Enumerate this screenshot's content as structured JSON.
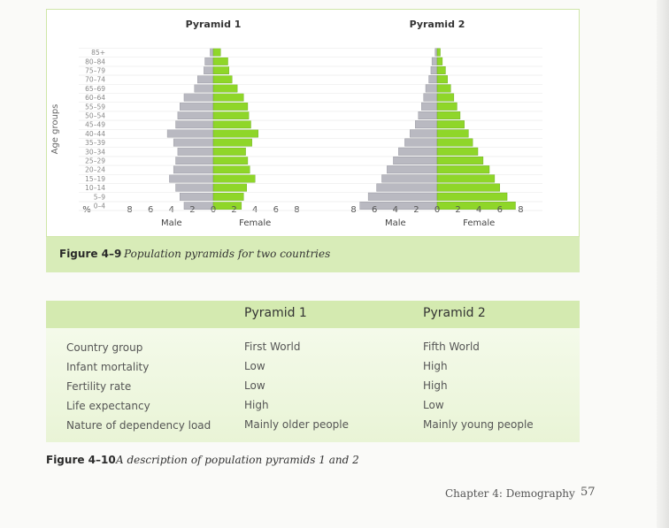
{
  "figure9": {
    "caption_number": "Figure 4–9",
    "caption_text": "Population pyramids for two countries",
    "chart_data": [
      {
        "type": "bar",
        "orientation": "horizontal-pyramid",
        "title": "Pyramid 1",
        "ylabel": "Age groups",
        "xlabel_left": "Male",
        "xlabel_right": "Female",
        "unit_label": "%",
        "x_ticks": [
          "8",
          "6",
          "4",
          "2",
          "0",
          "2",
          "4",
          "6",
          "8"
        ],
        "xlim": [
          -8,
          8
        ],
        "categories": [
          "0–4",
          "5–9",
          "10–14",
          "15–19",
          "20–24",
          "25–29",
          "30–34",
          "35–39",
          "40–44",
          "45–49",
          "50–54",
          "55–59",
          "60–64",
          "65–69",
          "70–74",
          "75–79",
          "80–84",
          "85+"
        ],
        "series": [
          {
            "name": "Male",
            "color": "#b9b9c1",
            "values": [
              2.8,
              3.2,
              3.6,
              4.2,
              3.8,
              3.6,
              3.4,
              3.8,
              4.4,
              3.6,
              3.4,
              3.2,
              2.8,
              1.8,
              1.5,
              0.9,
              0.8,
              0.3
            ]
          },
          {
            "name": "Female",
            "color": "#8fd629",
            "values": [
              2.7,
              2.9,
              3.2,
              4.0,
              3.5,
              3.3,
              3.1,
              3.7,
              4.3,
              3.6,
              3.4,
              3.3,
              2.9,
              2.3,
              1.8,
              1.5,
              1.4,
              0.7
            ]
          }
        ]
      },
      {
        "type": "bar",
        "orientation": "horizontal-pyramid",
        "title": "Pyramid 2",
        "xlabel_left": "Male",
        "xlabel_right": "Female",
        "x_ticks": [
          "8",
          "6",
          "4",
          "2",
          "0",
          "2",
          "4",
          "6",
          "8"
        ],
        "xlim": [
          -8,
          8
        ],
        "categories": [
          "0–4",
          "5–9",
          "10–14",
          "15–19",
          "20–24",
          "25–29",
          "30–34",
          "35–39",
          "40–44",
          "45–49",
          "50–54",
          "55–59",
          "60–64",
          "65–69",
          "70–74",
          "75–79",
          "80–84",
          "85+"
        ],
        "series": [
          {
            "name": "Male",
            "color": "#b9b9c1",
            "values": [
              7.4,
              6.6,
              5.8,
              5.3,
              4.8,
              4.2,
              3.7,
              3.1,
              2.6,
              2.1,
              1.8,
              1.5,
              1.3,
              1.1,
              0.8,
              0.6,
              0.5,
              0.2
            ]
          },
          {
            "name": "Female",
            "color": "#8fd629",
            "values": [
              7.5,
              6.7,
              6.0,
              5.5,
              5.0,
              4.4,
              3.9,
              3.4,
              3.0,
              2.6,
              2.2,
              1.9,
              1.6,
              1.3,
              1.0,
              0.8,
              0.5,
              0.3
            ]
          }
        ]
      }
    ]
  },
  "figure10": {
    "caption_number": "Figure 4–10",
    "caption_text": "A description of population pyramids 1 and 2",
    "headers": [
      "",
      "Pyramid 1",
      "Pyramid 2"
    ],
    "rows": [
      [
        "Country group",
        "First World",
        "Fifth World"
      ],
      [
        "Infant mortality",
        "Low",
        "High"
      ],
      [
        "Fertility rate",
        "Low",
        "High"
      ],
      [
        "Life expectancy",
        "High",
        "Low"
      ],
      [
        "Nature of dependency load",
        "Mainly older people",
        "Mainly young people"
      ]
    ]
  },
  "footer": {
    "chapter": "Chapter 4: Demography",
    "page_number": "57"
  }
}
